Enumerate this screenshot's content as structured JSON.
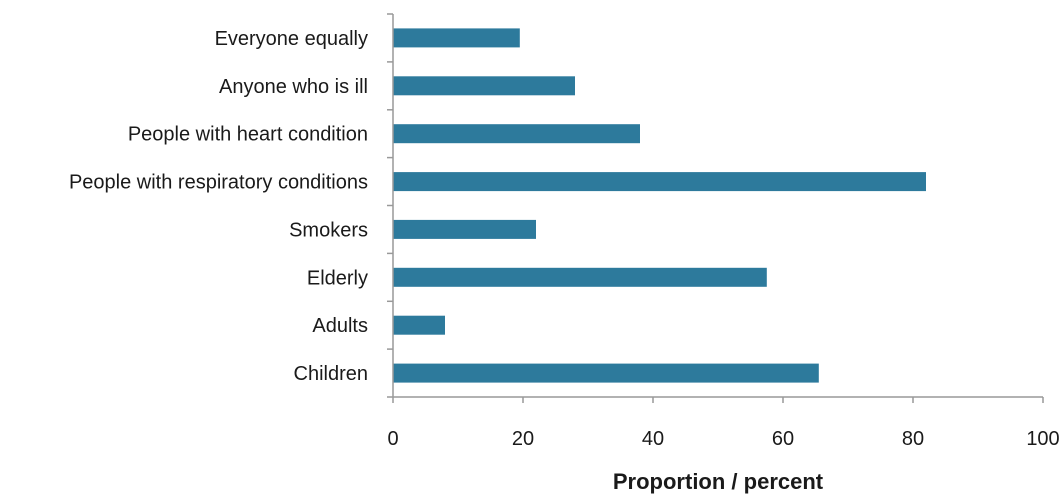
{
  "chart_data": {
    "type": "bar",
    "orientation": "horizontal",
    "title": "",
    "xlabel": "Proportion / percent",
    "ylabel": "",
    "xlim": [
      0,
      100
    ],
    "xticks": [
      0,
      20,
      40,
      60,
      80,
      100
    ],
    "grid": false,
    "legend": "none",
    "bar_color": "#2d7a9c",
    "categories": [
      "Everyone equally",
      "Anyone who is ill",
      "People with heart condition",
      "People with respiratory conditions",
      "Smokers",
      "Elderly",
      "Adults",
      "Children"
    ],
    "values": [
      19.5,
      28,
      38,
      82,
      22,
      57.5,
      8,
      65.5
    ]
  }
}
